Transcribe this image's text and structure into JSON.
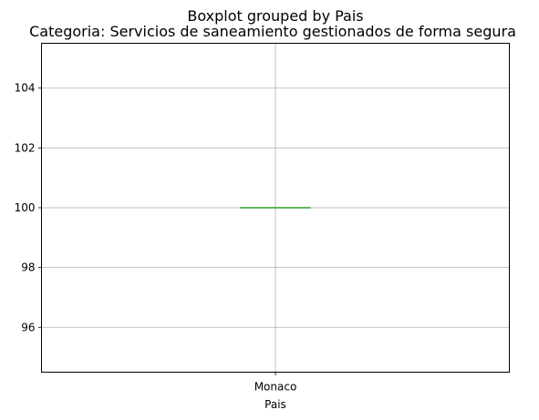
{
  "chart_data": {
    "type": "boxplot",
    "suptitle": "Boxplot grouped by Pais",
    "title": "Categoria: Servicios de saneamiento gestionados de forma segura",
    "xlabel": "Pais",
    "ylabel": "",
    "categories": [
      "Monaco"
    ],
    "boxes": [
      {
        "category": "Monaco",
        "min": 100,
        "q1": 100,
        "median": 100,
        "q3": 100,
        "max": 100
      }
    ],
    "ylim": [
      94.5,
      105.5
    ],
    "yticks": [
      96,
      98,
      100,
      102,
      104
    ],
    "grid": true,
    "colors": {
      "box": "#1f77b4",
      "median": "#2ca02c",
      "grid": "#b0b0b0",
      "axes": "#000000"
    }
  }
}
